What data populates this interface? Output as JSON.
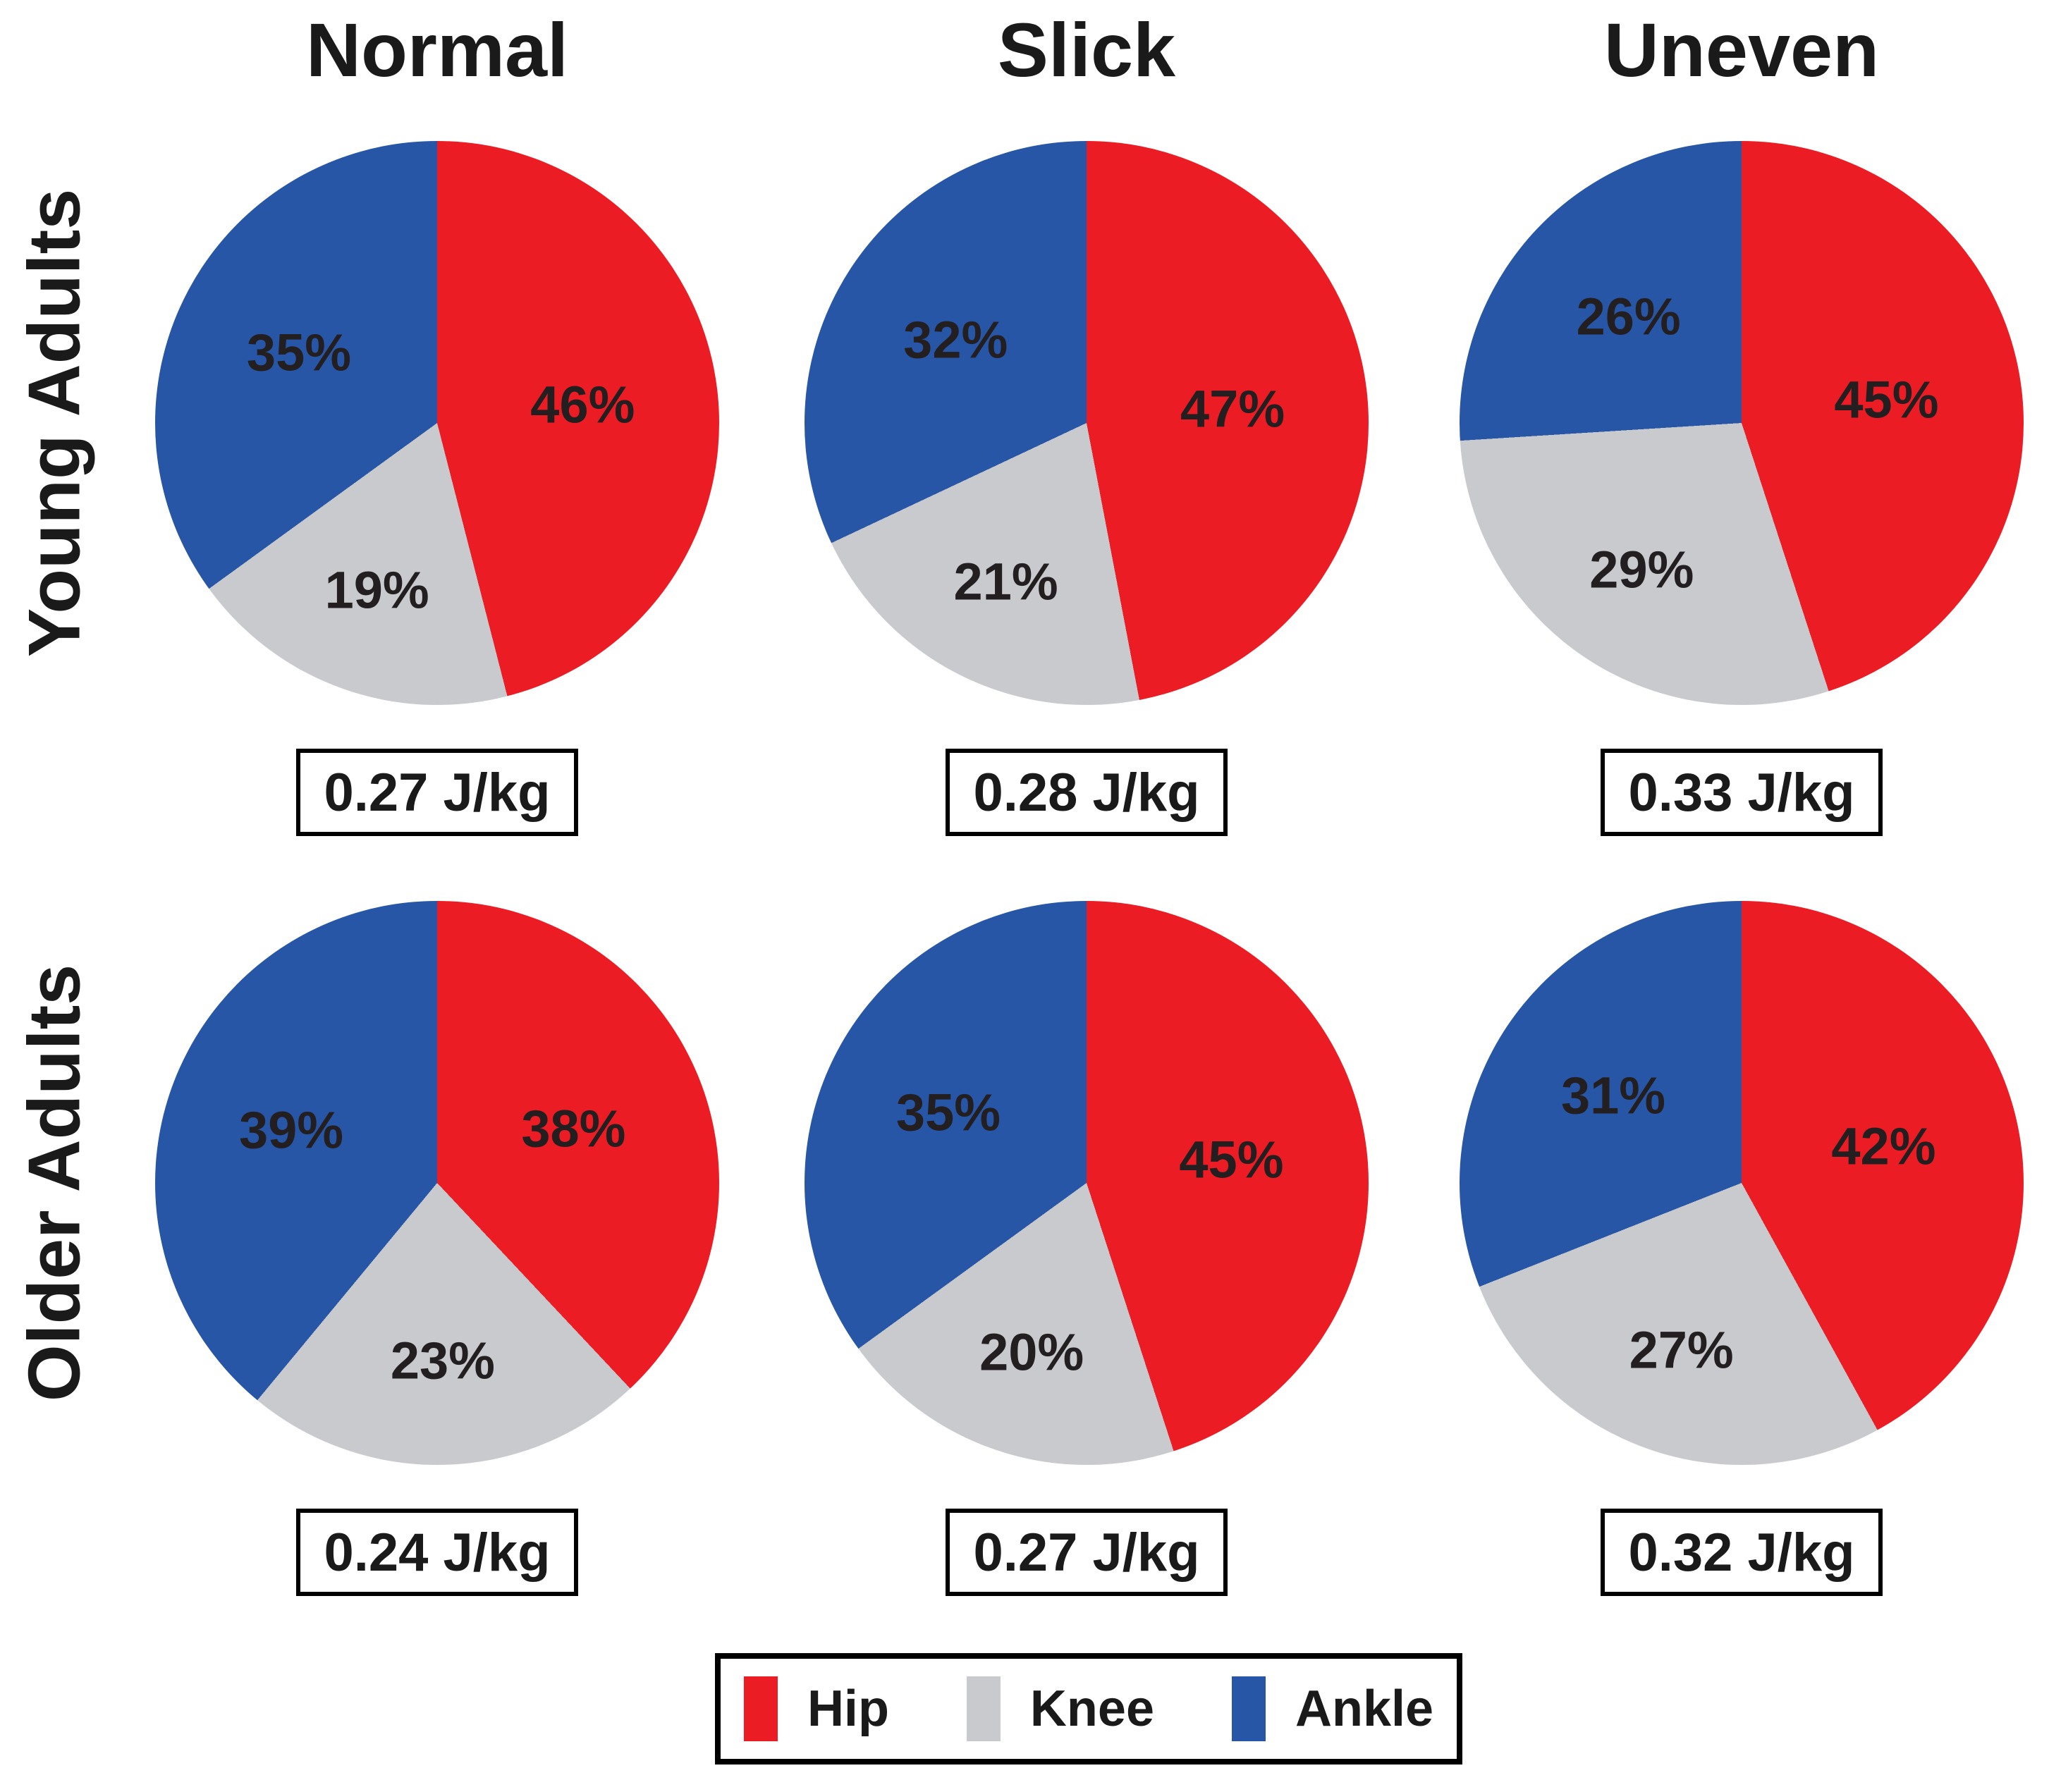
{
  "figure": {
    "column_headers": [
      "Normal",
      "Slick",
      "Uneven"
    ],
    "row_labels": [
      "Young Adults",
      "Older Adults"
    ],
    "legend": {
      "items": [
        {
          "label": "Hip",
          "color": "#EC1C24"
        },
        {
          "label": "Knee",
          "color": "#C9CACE"
        },
        {
          "label": "Ankle",
          "color": "#2856A7"
        }
      ]
    }
  },
  "chart_data": {
    "type": "pie",
    "layout": "grid of 6 pies: 2 rows (Young Adults, Older Adults) x 3 columns (Normal, Slick, Uneven)",
    "slice_order": [
      "Hip",
      "Knee",
      "Ankle"
    ],
    "direction": "clockwise",
    "start_angle_deg": 0,
    "colors": {
      "Hip": "#EC1C24",
      "Knee": "#C9CACE",
      "Ankle": "#2856A7"
    },
    "columns": [
      "Normal",
      "Slick",
      "Uneven"
    ],
    "rows": [
      "Young Adults",
      "Older Adults"
    ],
    "pies": [
      {
        "row": "Young Adults",
        "column": "Normal",
        "values": {
          "Hip": 46,
          "Knee": 19,
          "Ankle": 35
        },
        "slice_labels": {
          "Hip": "46%",
          "Knee": "19%",
          "Ankle": "35%"
        },
        "energy": "0.27 J/kg"
      },
      {
        "row": "Young Adults",
        "column": "Slick",
        "values": {
          "Hip": 47,
          "Knee": 21,
          "Ankle": 32
        },
        "slice_labels": {
          "Hip": "47%",
          "Knee": "21%",
          "Ankle": "32%"
        },
        "energy": "0.28 J/kg"
      },
      {
        "row": "Young Adults",
        "column": "Uneven",
        "values": {
          "Hip": 45,
          "Knee": 29,
          "Ankle": 26
        },
        "slice_labels": {
          "Hip": "45%",
          "Knee": "29%",
          "Ankle": "26%"
        },
        "energy": "0.33 J/kg"
      },
      {
        "row": "Older Adults",
        "column": "Normal",
        "values": {
          "Hip": 38,
          "Knee": 23,
          "Ankle": 39
        },
        "slice_labels": {
          "Hip": "38%",
          "Knee": "23%",
          "Ankle": "39%"
        },
        "energy": "0.24 J/kg"
      },
      {
        "row": "Older Adults",
        "column": "Slick",
        "values": {
          "Hip": 45,
          "Knee": 20,
          "Ankle": 35
        },
        "slice_labels": {
          "Hip": "45%",
          "Knee": "20%",
          "Ankle": "35%"
        },
        "energy": "0.27 J/kg"
      },
      {
        "row": "Older Adults",
        "column": "Uneven",
        "values": {
          "Hip": 42,
          "Knee": 27,
          "Ankle": 31
        },
        "slice_labels": {
          "Hip": "42%",
          "Knee": "27%",
          "Ankle": "31%"
        },
        "energy": "0.32 J/kg"
      }
    ]
  }
}
